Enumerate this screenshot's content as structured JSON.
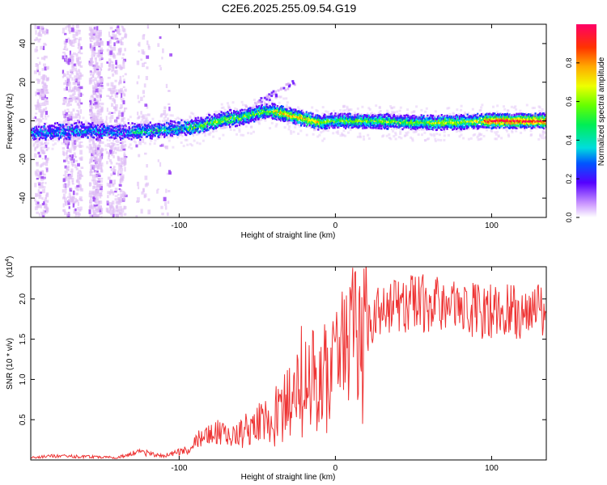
{
  "figure": {
    "title": "C2E6.2025.255.09.54.G19"
  },
  "chart_data": [
    {
      "type": "heatmap",
      "name": "spectrogram",
      "xlabel": "Height of straight line (km)",
      "ylabel": "Frequency (Hz)",
      "xlim": [
        -195,
        135
      ],
      "ylim": [
        -50,
        50
      ],
      "xticks": [
        -100,
        0,
        100
      ],
      "yticks": [
        -40,
        -20,
        0,
        20,
        40
      ],
      "grid": false,
      "ridge": {
        "x": [
          -195,
          -160,
          -140,
          -120,
          -100,
          -90,
          -80,
          -70,
          -60,
          -50,
          -45,
          -40,
          -35,
          -30,
          -25,
          -20,
          -15,
          -10,
          -5,
          0,
          20,
          60,
          100,
          135
        ],
        "frequency": [
          -6,
          -5,
          -6,
          -5,
          -4,
          -3,
          -1,
          1,
          2,
          4,
          5,
          5,
          4,
          3,
          2,
          1,
          0,
          -1,
          0,
          0,
          0,
          -1,
          0,
          0
        ]
      },
      "colorbar": {
        "label": "Normalized spectral amplitude",
        "range": [
          0,
          1
        ],
        "ticks": [
          "0.0",
          "0.2",
          "0.4",
          "0.6",
          "0.8"
        ],
        "tick_values": [
          0,
          0.2,
          0.4,
          0.6,
          0.8
        ]
      }
    },
    {
      "type": "line",
      "name": "snr",
      "xlabel": "Height of straight line (km)",
      "ylabel": "SNR (10 * v/v)",
      "exponent_label": "(x10",
      "exponent_power": "4",
      "exponent_close": ")",
      "xlim": [
        -195,
        135
      ],
      "ylim": [
        0,
        2.4
      ],
      "xticks": [
        -100,
        0,
        100
      ],
      "yticks": [
        "0.5",
        "1.0",
        "1.5",
        "2.0"
      ],
      "ytick_values": [
        0.5,
        1.0,
        1.5,
        2.0
      ],
      "color": "#ee3333",
      "envelope": {
        "x": [
          -195,
          -180,
          -160,
          -140,
          -125,
          -110,
          -95,
          -85,
          -75,
          -65,
          -55,
          -45,
          -35,
          -28,
          -20,
          -10,
          0,
          10,
          20,
          35,
          50,
          60,
          70,
          80,
          100,
          120,
          135
        ],
        "y": [
          0.03,
          0.05,
          0.04,
          0.03,
          0.1,
          0.05,
          0.12,
          0.3,
          0.35,
          0.3,
          0.4,
          0.5,
          0.65,
          0.9,
          1.15,
          1.1,
          1.3,
          1.6,
          1.75,
          1.9,
          1.95,
          1.95,
          1.9,
          1.85,
          1.85,
          1.85,
          1.85
        ]
      }
    }
  ]
}
